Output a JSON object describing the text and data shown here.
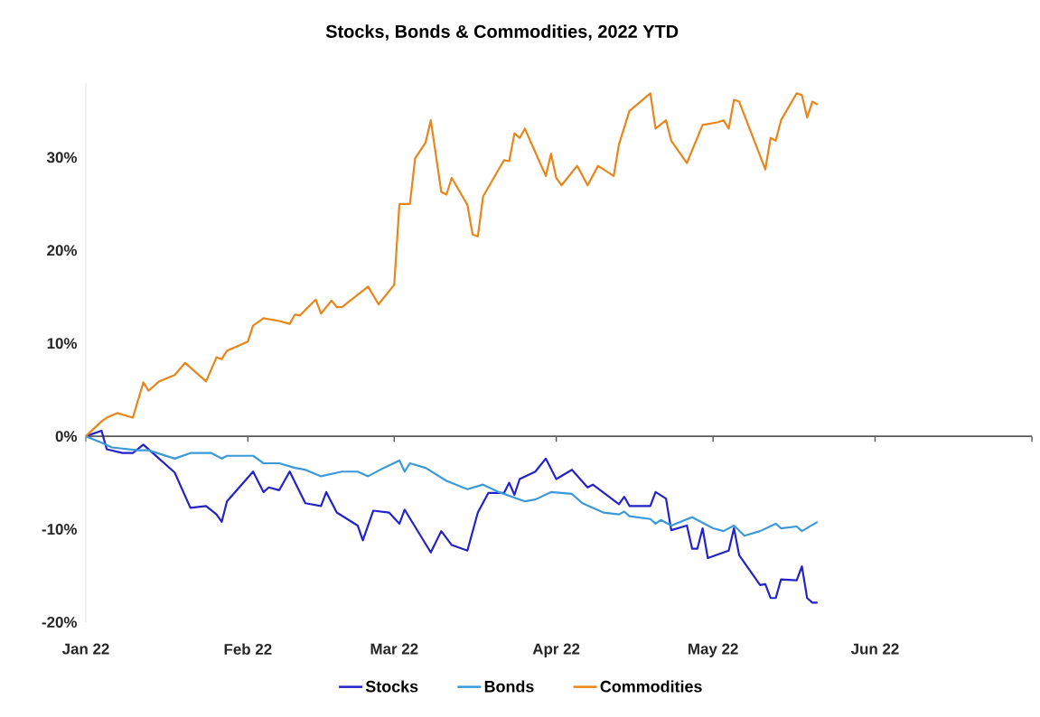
{
  "chart_data": {
    "type": "line",
    "title": "Stocks, Bonds & Commodities, 2022 YTD",
    "xlim": [
      "2022-01-01",
      "2022-07-01"
    ],
    "xticks": [
      {
        "value": "2022-01-01",
        "label": "Jan 22"
      },
      {
        "value": "2022-02-01",
        "label": "Feb 22"
      },
      {
        "value": "2022-03-01",
        "label": "Mar 22"
      },
      {
        "value": "2022-04-01",
        "label": "Apr 22"
      },
      {
        "value": "2022-05-01",
        "label": "May 22"
      },
      {
        "value": "2022-06-01",
        "label": "Jun 22"
      },
      {
        "value": "2022-07-01",
        "label": null
      }
    ],
    "ylim": [
      -20,
      38
    ],
    "yticks": [
      {
        "value": -20,
        "label": "-20%"
      },
      {
        "value": -10,
        "label": "-10%"
      },
      {
        "value": 0,
        "label": "0%"
      },
      {
        "value": 10,
        "label": "10%"
      },
      {
        "value": 20,
        "label": "20%"
      },
      {
        "value": 30,
        "label": "30%"
      }
    ],
    "legend": "bottom",
    "marker": "none",
    "series": [
      {
        "name": "Stocks",
        "color": "#2323c8",
        "x": [
          "2022-01-01",
          "2022-01-04",
          "2022-01-05",
          "2022-01-08",
          "2022-01-10",
          "2022-01-12",
          "2022-01-14",
          "2022-01-18",
          "2022-01-21",
          "2022-01-24",
          "2022-01-26",
          "2022-01-27",
          "2022-01-28",
          "2022-02-02",
          "2022-02-04",
          "2022-02-05",
          "2022-02-07",
          "2022-02-09",
          "2022-02-12",
          "2022-02-15",
          "2022-02-16",
          "2022-02-18",
          "2022-02-22",
          "2022-02-23",
          "2022-02-25",
          "2022-02-28",
          "2022-03-02",
          "2022-03-03",
          "2022-03-08",
          "2022-03-10",
          "2022-03-12",
          "2022-03-15",
          "2022-03-17",
          "2022-03-19",
          "2022-03-22",
          "2022-03-23",
          "2022-03-24",
          "2022-03-25",
          "2022-03-28",
          "2022-03-30",
          "2022-04-01",
          "2022-04-04",
          "2022-04-07",
          "2022-04-08",
          "2022-04-13",
          "2022-04-14",
          "2022-04-15",
          "2022-04-19",
          "2022-04-20",
          "2022-04-22",
          "2022-04-23",
          "2022-04-26",
          "2022-04-27",
          "2022-04-28",
          "2022-04-29",
          "2022-04-30",
          "2022-05-04",
          "2022-05-05",
          "2022-05-06",
          "2022-05-10",
          "2022-05-11",
          "2022-05-12",
          "2022-05-13",
          "2022-05-14",
          "2022-05-17",
          "2022-05-18",
          "2022-05-19",
          "2022-05-20",
          "2022-05-21"
        ],
        "values": [
          0,
          0.6,
          -1.4,
          -1.8,
          -1.8,
          -0.9,
          -1.9,
          -3.9,
          -7.7,
          -7.5,
          -8.4,
          -9.2,
          -7.0,
          -3.8,
          -6.0,
          -5.5,
          -5.8,
          -3.8,
          -7.2,
          -7.5,
          -6.0,
          -8.2,
          -9.6,
          -11.2,
          -8.0,
          -8.2,
          -9.4,
          -7.9,
          -12.5,
          -10.2,
          -11.7,
          -12.3,
          -8.2,
          -6.1,
          -6.1,
          -5.0,
          -6.3,
          -4.6,
          -3.8,
          -2.4,
          -4.6,
          -3.6,
          -5.5,
          -5.2,
          -7.3,
          -6.5,
          -7.5,
          -7.5,
          -6.0,
          -6.7,
          -10.1,
          -9.6,
          -12.1,
          -12.1,
          -9.9,
          -13.1,
          -12.3,
          -9.9,
          -12.8,
          -16.0,
          -15.9,
          -17.4,
          -17.4,
          -15.4,
          -15.5,
          -14.0,
          -17.4,
          -17.9,
          -17.9
        ]
      },
      {
        "name": "Bonds",
        "color": "#3a9ad9",
        "x": [
          "2022-01-01",
          "2022-01-04",
          "2022-01-06",
          "2022-01-11",
          "2022-01-13",
          "2022-01-18",
          "2022-01-21",
          "2022-01-25",
          "2022-01-27",
          "2022-01-28",
          "2022-02-02",
          "2022-02-04",
          "2022-02-07",
          "2022-02-10",
          "2022-02-12",
          "2022-02-15",
          "2022-02-19",
          "2022-02-22",
          "2022-02-24",
          "2022-02-27",
          "2022-03-02",
          "2022-03-03",
          "2022-03-04",
          "2022-03-07",
          "2022-03-11",
          "2022-03-15",
          "2022-03-18",
          "2022-03-21",
          "2022-03-26",
          "2022-03-28",
          "2022-03-31",
          "2022-04-04",
          "2022-04-06",
          "2022-04-10",
          "2022-04-13",
          "2022-04-14",
          "2022-04-15",
          "2022-04-19",
          "2022-04-20",
          "2022-04-21",
          "2022-04-23",
          "2022-04-27",
          "2022-05-01",
          "2022-05-03",
          "2022-05-05",
          "2022-05-07",
          "2022-05-10",
          "2022-05-13",
          "2022-05-14",
          "2022-05-17",
          "2022-05-18",
          "2022-05-21"
        ],
        "values": [
          0,
          -0.7,
          -1.2,
          -1.5,
          -1.5,
          -2.4,
          -1.8,
          -1.8,
          -2.4,
          -2.1,
          -2.1,
          -2.9,
          -2.9,
          -3.4,
          -3.6,
          -4.3,
          -3.8,
          -3.8,
          -4.3,
          -3.4,
          -2.6,
          -3.8,
          -2.9,
          -3.4,
          -4.8,
          -5.7,
          -5.2,
          -6.0,
          -7.0,
          -6.8,
          -6.0,
          -6.2,
          -7.2,
          -8.2,
          -8.4,
          -8.1,
          -8.6,
          -8.9,
          -9.4,
          -9.0,
          -9.6,
          -8.7,
          -9.9,
          -10.2,
          -9.6,
          -10.7,
          -10.2,
          -9.4,
          -9.9,
          -9.7,
          -10.2,
          -9.2
        ]
      },
      {
        "name": "Commodities",
        "color": "#e8861a",
        "x": [
          "2022-01-01",
          "2022-01-04",
          "2022-01-05",
          "2022-01-07",
          "2022-01-10",
          "2022-01-12",
          "2022-01-13",
          "2022-01-15",
          "2022-01-18",
          "2022-01-20",
          "2022-01-24",
          "2022-01-26",
          "2022-01-27",
          "2022-01-28",
          "2022-02-01",
          "2022-02-02",
          "2022-02-04",
          "2022-02-07",
          "2022-02-09",
          "2022-02-10",
          "2022-02-11",
          "2022-02-12",
          "2022-02-14",
          "2022-02-15",
          "2022-02-17",
          "2022-02-18",
          "2022-02-19",
          "2022-02-24",
          "2022-02-26",
          "2022-03-01",
          "2022-03-02",
          "2022-03-04",
          "2022-03-05",
          "2022-03-07",
          "2022-03-08",
          "2022-03-10",
          "2022-03-11",
          "2022-03-12",
          "2022-03-15",
          "2022-03-16",
          "2022-03-17",
          "2022-03-18",
          "2022-03-22",
          "2022-03-23",
          "2022-03-24",
          "2022-03-25",
          "2022-03-26",
          "2022-03-30",
          "2022-03-31",
          "2022-04-01",
          "2022-04-02",
          "2022-04-05",
          "2022-04-07",
          "2022-04-09",
          "2022-04-12",
          "2022-04-13",
          "2022-04-15",
          "2022-04-19",
          "2022-04-20",
          "2022-04-22",
          "2022-04-23",
          "2022-04-26",
          "2022-04-29",
          "2022-05-02",
          "2022-05-03",
          "2022-05-04",
          "2022-05-05",
          "2022-05-06",
          "2022-05-11",
          "2022-05-12",
          "2022-05-13",
          "2022-05-14",
          "2022-05-17",
          "2022-05-18",
          "2022-05-19",
          "2022-05-20",
          "2022-05-21"
        ],
        "values": [
          0,
          1.6,
          2.0,
          2.5,
          2.0,
          5.8,
          4.9,
          5.9,
          6.6,
          7.9,
          5.9,
          8.5,
          8.3,
          9.2,
          10.2,
          11.9,
          12.7,
          12.4,
          12.1,
          13.1,
          13.0,
          13.6,
          14.7,
          13.2,
          14.6,
          13.9,
          13.9,
          16.1,
          14.2,
          16.3,
          25.0,
          25.0,
          29.9,
          31.6,
          34.0,
          26.3,
          26.0,
          27.8,
          24.9,
          21.7,
          21.5,
          25.8,
          29.7,
          29.6,
          32.6,
          32.1,
          33.1,
          28.0,
          30.4,
          27.8,
          27.0,
          29.1,
          27.0,
          29.1,
          28.0,
          31.4,
          35.0,
          36.9,
          33.1,
          34.0,
          31.8,
          29.4,
          33.5,
          33.8,
          34.0,
          33.1,
          36.2,
          36.0,
          28.7,
          32.1,
          31.8,
          34.0,
          36.9,
          36.7,
          34.3,
          36.0,
          35.7
        ]
      }
    ]
  }
}
